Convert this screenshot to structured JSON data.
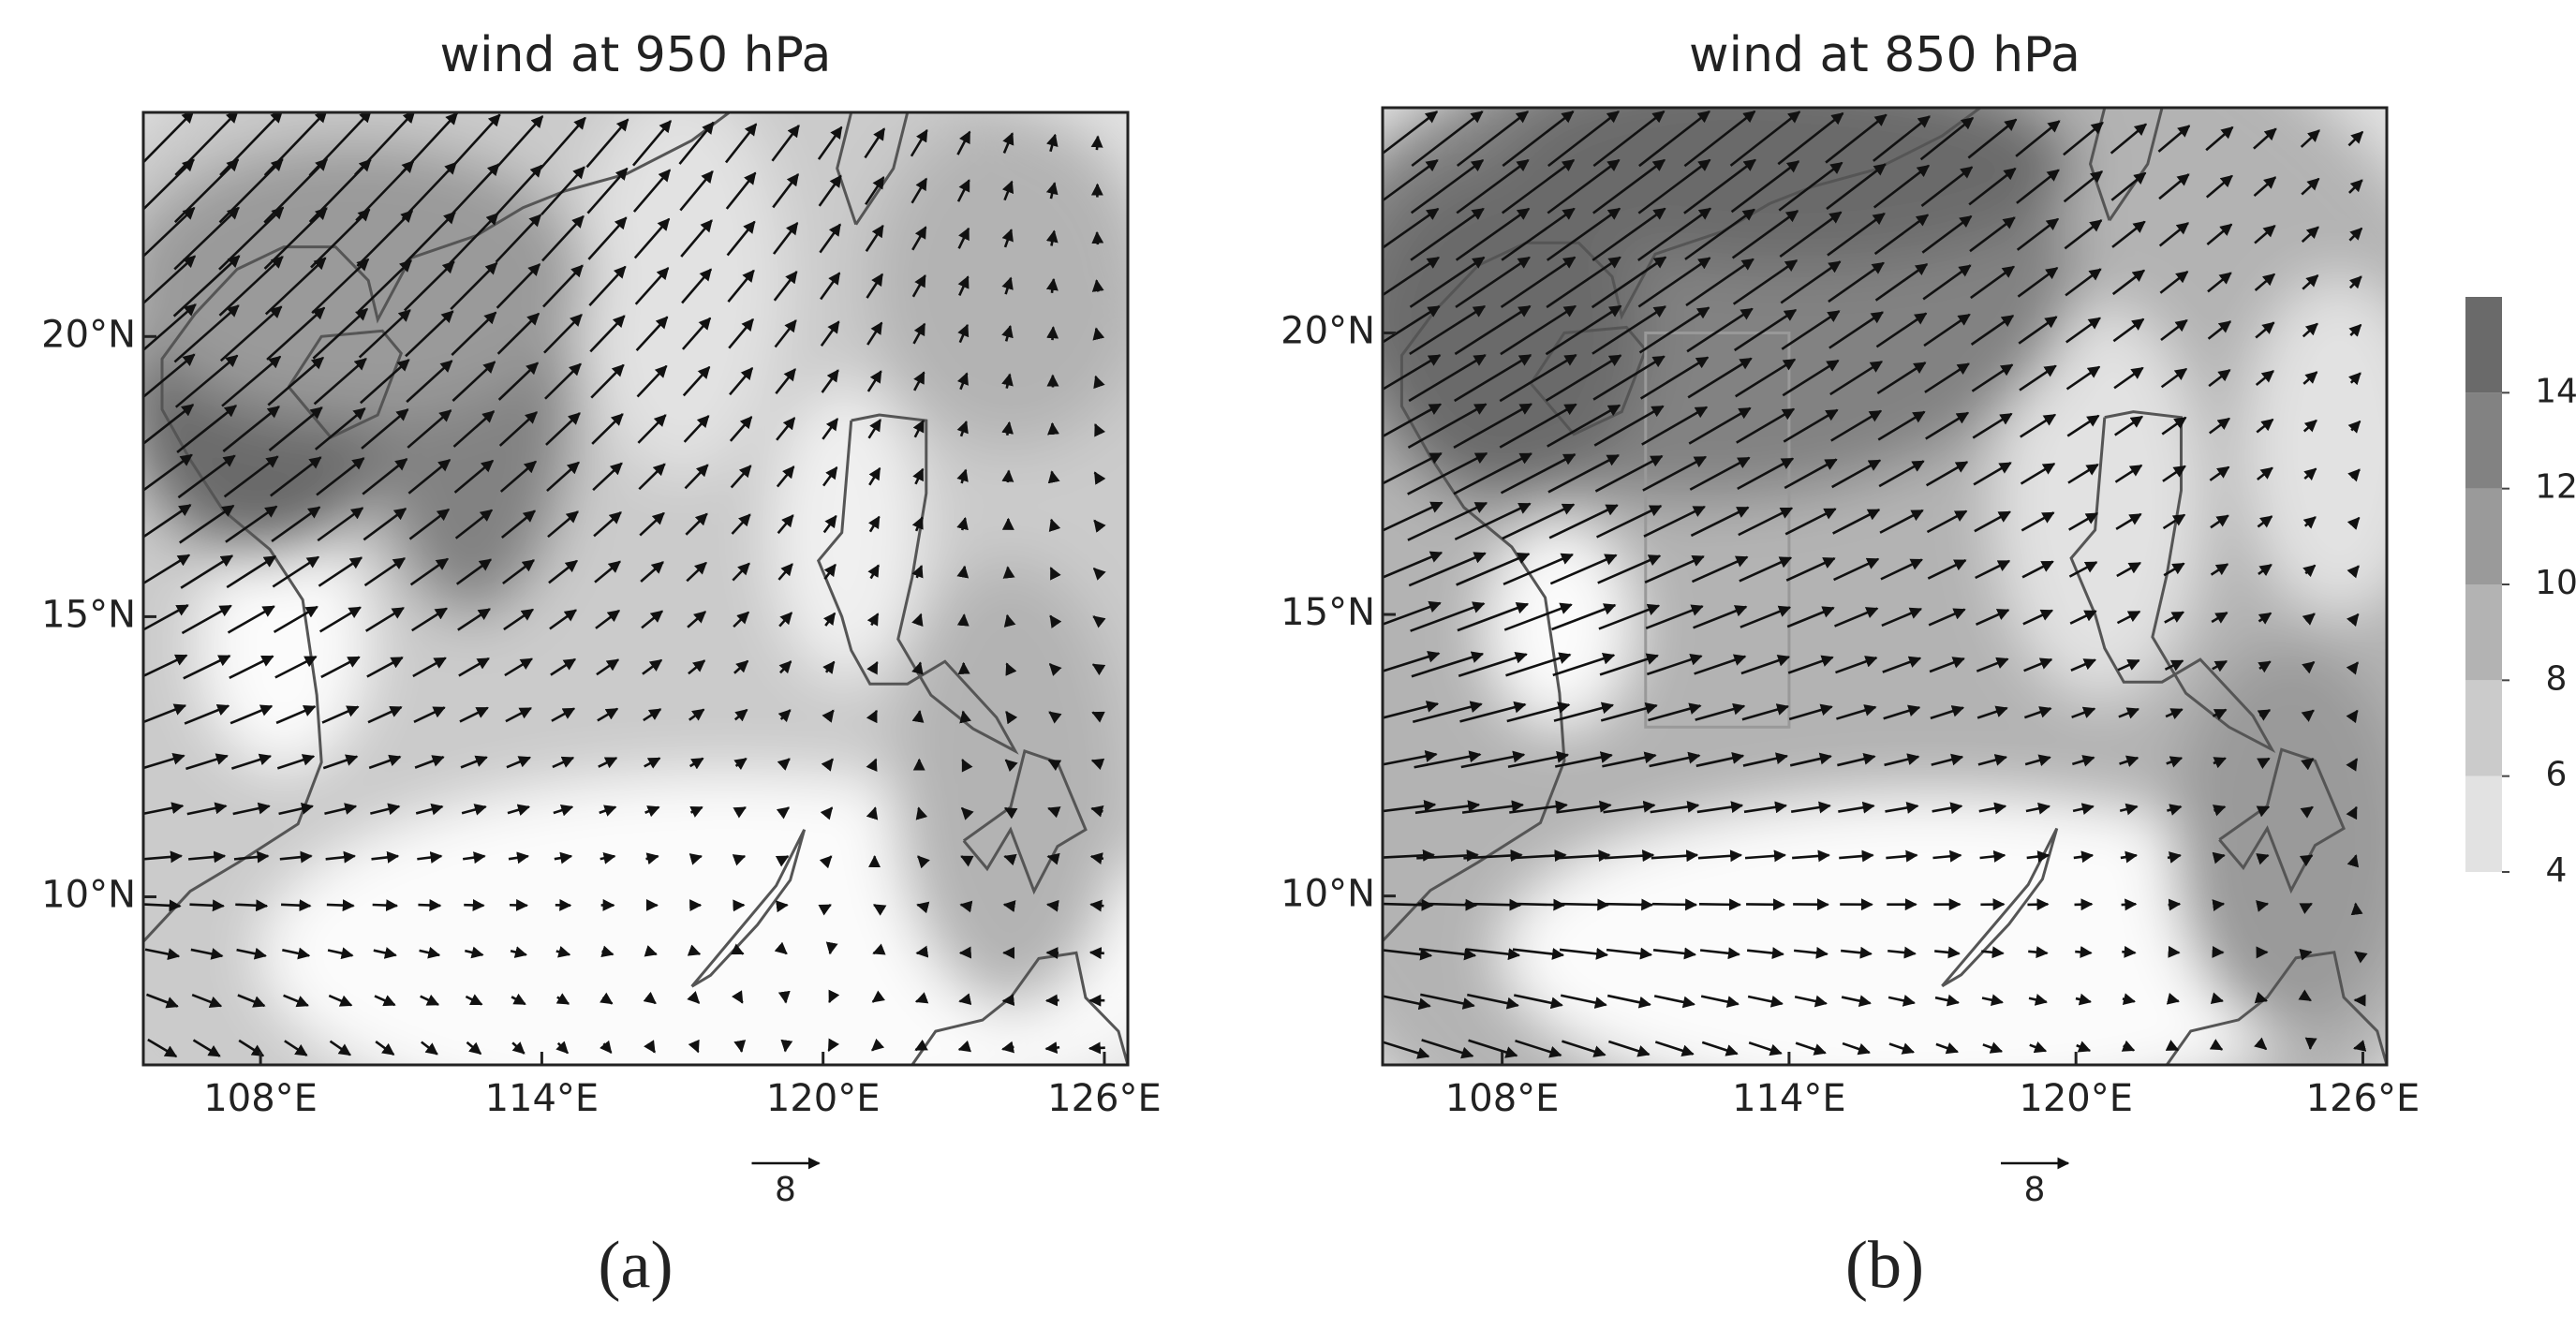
{
  "panels": [
    {
      "title": "wind at 950 hPa",
      "label": "(a)",
      "xlim": [
        105.5,
        126.5
      ],
      "ylim": [
        7,
        24
      ],
      "xticks": [
        {
          "value": 108,
          "label": "108°E"
        },
        {
          "value": 114,
          "label": "114°E"
        },
        {
          "value": 120,
          "label": "120°E"
        },
        {
          "value": 126,
          "label": "126°E"
        }
      ],
      "yticks": [
        {
          "value": 10,
          "label": "10°N"
        },
        {
          "value": 15,
          "label": "15°N"
        },
        {
          "value": 20,
          "label": "20°N"
        }
      ],
      "reference_vector": 8
    },
    {
      "title": "wind at 850 hPa",
      "label": "(b)",
      "xlim": [
        105.5,
        126.5
      ],
      "ylim": [
        7,
        24
      ],
      "xticks": [
        {
          "value": 108,
          "label": "108°E"
        },
        {
          "value": 114,
          "label": "114°E"
        },
        {
          "value": 120,
          "label": "120°E"
        },
        {
          "value": 126,
          "label": "126°E"
        }
      ],
      "yticks": [
        {
          "value": 10,
          "label": "10°N"
        },
        {
          "value": 15,
          "label": "15°N"
        },
        {
          "value": 20,
          "label": "20°N"
        }
      ],
      "reference_vector": 8
    }
  ],
  "colorbar": {
    "lim": [
      4,
      16
    ],
    "ticks": [
      4,
      6,
      8,
      10,
      12,
      14
    ],
    "bounds": [
      4,
      6,
      8,
      10,
      12,
      14,
      16
    ],
    "colors": [
      "#e2e2e2",
      "#cbcbcb",
      "#b3b3b3",
      "#9a9a9a",
      "#828282",
      "#6a6a6a"
    ]
  }
}
